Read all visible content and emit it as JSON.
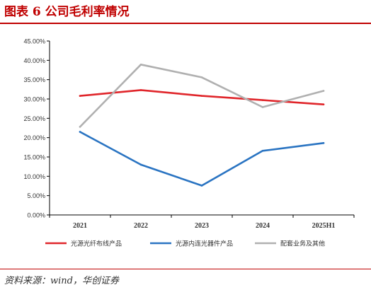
{
  "figure": {
    "title": "图表 6   公司毛利率情况",
    "source": "资料来源：wind，华创证券"
  },
  "colors": {
    "accent": "#c00000",
    "series": [
      "#e0262b",
      "#2a74c2",
      "#b0b0b0"
    ],
    "axis": "#000000",
    "text": "#333333"
  },
  "chart_data": {
    "type": "line",
    "title": "",
    "xlabel": "",
    "ylabel": "",
    "categories": [
      "2021",
      "2022",
      "2023",
      "2024",
      "2025H1"
    ],
    "ylim": [
      0,
      45
    ],
    "yticks": [
      0,
      5,
      10,
      15,
      20,
      25,
      30,
      35,
      40,
      45
    ],
    "ytick_labels": [
      "0.00%",
      "5.00%",
      "10.00%",
      "15.00%",
      "20.00%",
      "25.00%",
      "30.00%",
      "35.00%",
      "40.00%",
      "45.00%"
    ],
    "grid": false,
    "legend": "bottom",
    "series": [
      {
        "name": "光源光纤布线产品",
        "values": [
          30.8,
          32.3,
          30.8,
          29.7,
          28.6
        ]
      },
      {
        "name": "光源内连光器件产品",
        "values": [
          21.5,
          13.0,
          7.6,
          16.6,
          18.6
        ]
      },
      {
        "name": "配套业务及其他",
        "values": [
          22.8,
          38.9,
          35.6,
          27.9,
          32.1
        ]
      }
    ]
  }
}
